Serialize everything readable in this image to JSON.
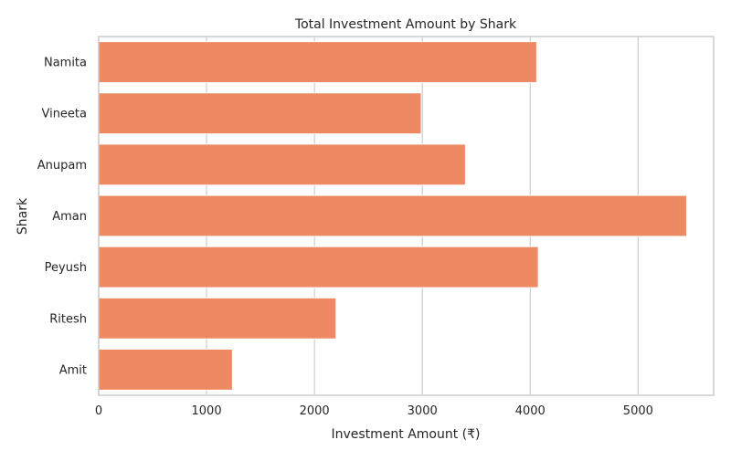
{
  "chart_data": {
    "type": "bar",
    "orientation": "horizontal",
    "title": "Total Investment Amount by Shark",
    "xlabel": "Investment Amount (₹)",
    "ylabel": "Shark",
    "categories": [
      "Namita",
      "Vineeta",
      "Anupam",
      "Aman",
      "Peyush",
      "Ritesh",
      "Amit"
    ],
    "values": [
      4060,
      2990,
      3400,
      5450,
      4075,
      2200,
      1240
    ],
    "xlim": [
      0,
      5700
    ],
    "xticks": [
      0,
      1000,
      2000,
      3000,
      4000,
      5000
    ],
    "grid": "vertical",
    "bar_color": "#ee8a63",
    "grid_color": "#cccccc"
  }
}
